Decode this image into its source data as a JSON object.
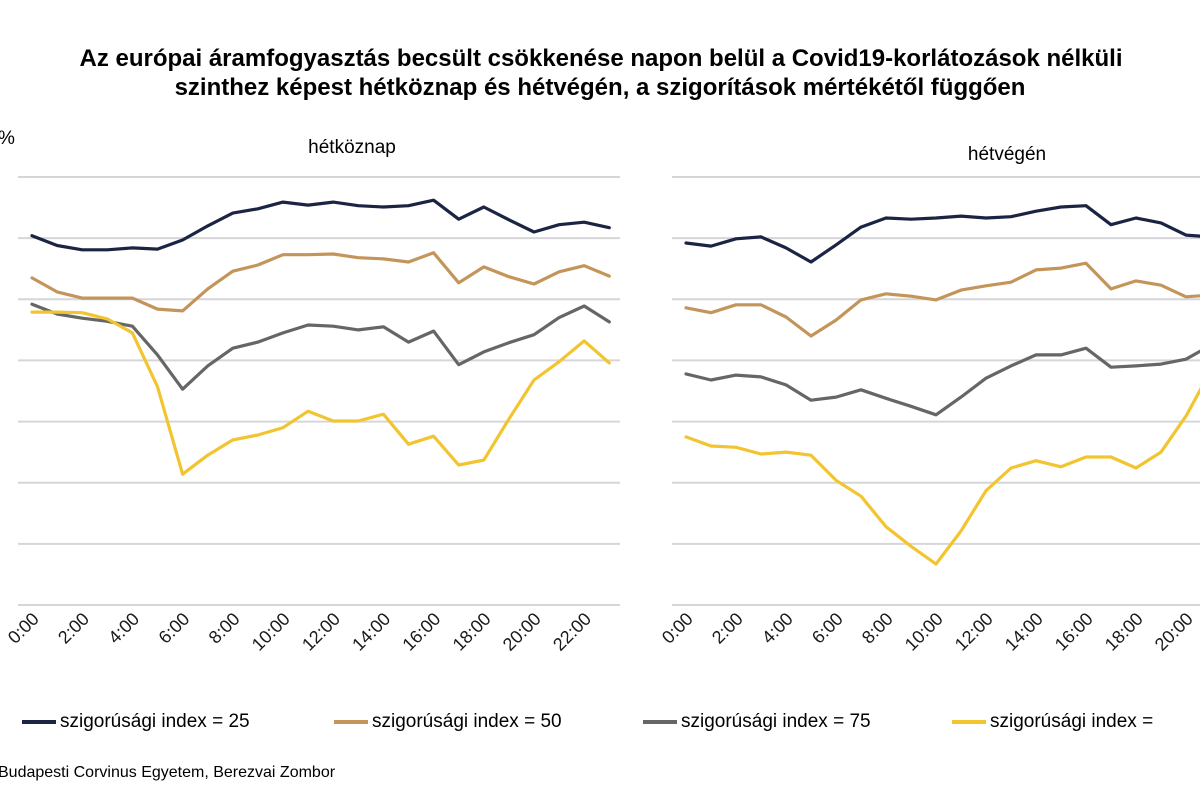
{
  "title": {
    "line1": "Az európai áramfogyasztás becsült csökkenése napon belül a Covid19-korlátozások nélküli",
    "line2": "szinthez képest hétköznap és hétvégén, a szigorítások mértékétől függően"
  },
  "unit_label": "%",
  "source": "Budapesti Corvinus Egyetem, Berezvai Zombor",
  "colors": {
    "idx25": "#1c2444",
    "idx50": "#c4955a",
    "idx75": "#666666",
    "idx100": "#f2c530",
    "grid": "#d6d6da"
  },
  "legend": [
    {
      "label": "szigorúsági index = 25",
      "color_key": "idx25"
    },
    {
      "label": "szigorúsági index = 50",
      "color_key": "idx50"
    },
    {
      "label": "szigorúsági index = 75",
      "color_key": "idx75"
    },
    {
      "label": "szigorúsági index =",
      "color_key": "idx100"
    }
  ],
  "chart_data": [
    {
      "type": "line",
      "title": "hétköznap",
      "xlabel": "",
      "ylabel": "%",
      "y_note": "y tick labels not visible; values in gridline units (bottom gridline = 0, top = 7)",
      "ylim": [
        0,
        7
      ],
      "grid": true,
      "x": [
        "0:00",
        "1:00",
        "2:00",
        "3:00",
        "4:00",
        "5:00",
        "6:00",
        "7:00",
        "8:00",
        "9:00",
        "10:00",
        "11:00",
        "12:00",
        "13:00",
        "14:00",
        "15:00",
        "16:00",
        "17:00",
        "18:00",
        "19:00",
        "20:00",
        "21:00",
        "22:00",
        "23:00"
      ],
      "tick_labels": [
        "0:00",
        "2:00",
        "4:00",
        "6:00",
        "8:00",
        "10:00",
        "12:00",
        "14:00",
        "16:00",
        "18:00",
        "20:00",
        "22:00"
      ],
      "series": [
        {
          "name": "szigorúsági index = 25",
          "color_key": "idx25",
          "values": [
            6.04,
            5.88,
            5.81,
            5.81,
            5.84,
            5.82,
            5.97,
            6.2,
            6.41,
            6.48,
            6.59,
            6.54,
            6.59,
            6.53,
            6.51,
            6.53,
            6.62,
            6.31,
            6.51,
            6.3,
            6.1,
            6.22,
            6.26,
            6.17
          ]
        },
        {
          "name": "szigorúsági index = 50",
          "color_key": "idx50",
          "values": [
            5.35,
            5.12,
            5.02,
            5.02,
            5.02,
            4.84,
            4.81,
            5.17,
            5.46,
            5.56,
            5.73,
            5.73,
            5.74,
            5.68,
            5.66,
            5.61,
            5.76,
            5.27,
            5.53,
            5.37,
            5.25,
            5.45,
            5.55,
            5.38
          ]
        },
        {
          "name": "szigorúsági index = 75",
          "color_key": "idx75",
          "values": [
            4.92,
            4.76,
            4.69,
            4.64,
            4.56,
            4.09,
            3.53,
            3.91,
            4.2,
            4.3,
            4.45,
            4.58,
            4.56,
            4.5,
            4.55,
            4.3,
            4.48,
            3.93,
            4.14,
            4.29,
            4.42,
            4.7,
            4.89,
            4.63
          ]
        },
        {
          "name": "szigorúsági index =",
          "color_key": "idx100",
          "values": [
            4.79,
            4.79,
            4.78,
            4.68,
            4.45,
            3.57,
            2.14,
            2.45,
            2.7,
            2.78,
            2.9,
            3.17,
            3.01,
            3.01,
            3.12,
            2.63,
            2.76,
            2.29,
            2.37,
            3.04,
            3.68,
            3.98,
            4.32,
            3.96
          ]
        }
      ]
    },
    {
      "type": "line",
      "title": "hétvégén",
      "xlabel": "",
      "ylabel": "%",
      "ylim": [
        0,
        7
      ],
      "grid": true,
      "x": [
        "0:00",
        "1:00",
        "2:00",
        "3:00",
        "4:00",
        "5:00",
        "6:00",
        "7:00",
        "8:00",
        "9:00",
        "10:00",
        "11:00",
        "12:00",
        "13:00",
        "14:00",
        "15:00",
        "16:00",
        "17:00",
        "18:00",
        "19:00",
        "20:00",
        "21:00"
      ],
      "tick_labels": [
        "0:00",
        "2:00",
        "4:00",
        "6:00",
        "8:00",
        "10:00",
        "12:00",
        "14:00",
        "16:00",
        "18:00",
        "20:00"
      ],
      "series": [
        {
          "name": "szigorúsági index = 25",
          "color_key": "idx25",
          "values": [
            5.92,
            5.87,
            5.99,
            6.02,
            5.84,
            5.61,
            5.89,
            6.18,
            6.33,
            6.31,
            6.33,
            6.36,
            6.33,
            6.35,
            6.44,
            6.51,
            6.53,
            6.22,
            6.33,
            6.25,
            6.05,
            6.02
          ]
        },
        {
          "name": "szigorúsági index = 50",
          "color_key": "idx50",
          "values": [
            4.86,
            4.78,
            4.91,
            4.91,
            4.71,
            4.4,
            4.66,
            4.99,
            5.09,
            5.05,
            4.99,
            5.15,
            5.22,
            5.28,
            5.48,
            5.51,
            5.59,
            5.17,
            5.3,
            5.23,
            5.04,
            5.07
          ]
        },
        {
          "name": "szigorúsági index = 75",
          "color_key": "idx75",
          "values": [
            3.78,
            3.68,
            3.76,
            3.73,
            3.6,
            3.35,
            3.4,
            3.52,
            3.38,
            3.25,
            3.11,
            3.4,
            3.71,
            3.91,
            4.09,
            4.09,
            4.2,
            3.89,
            3.91,
            3.94,
            4.02,
            4.25
          ]
        },
        {
          "name": "szigorúsági index =",
          "color_key": "idx100",
          "values": [
            2.75,
            2.6,
            2.58,
            2.47,
            2.5,
            2.45,
            2.04,
            1.78,
            1.28,
            0.96,
            0.67,
            1.21,
            1.87,
            2.24,
            2.36,
            2.26,
            2.42,
            2.42,
            2.24,
            2.5,
            3.09,
            3.84
          ]
        }
      ]
    }
  ]
}
